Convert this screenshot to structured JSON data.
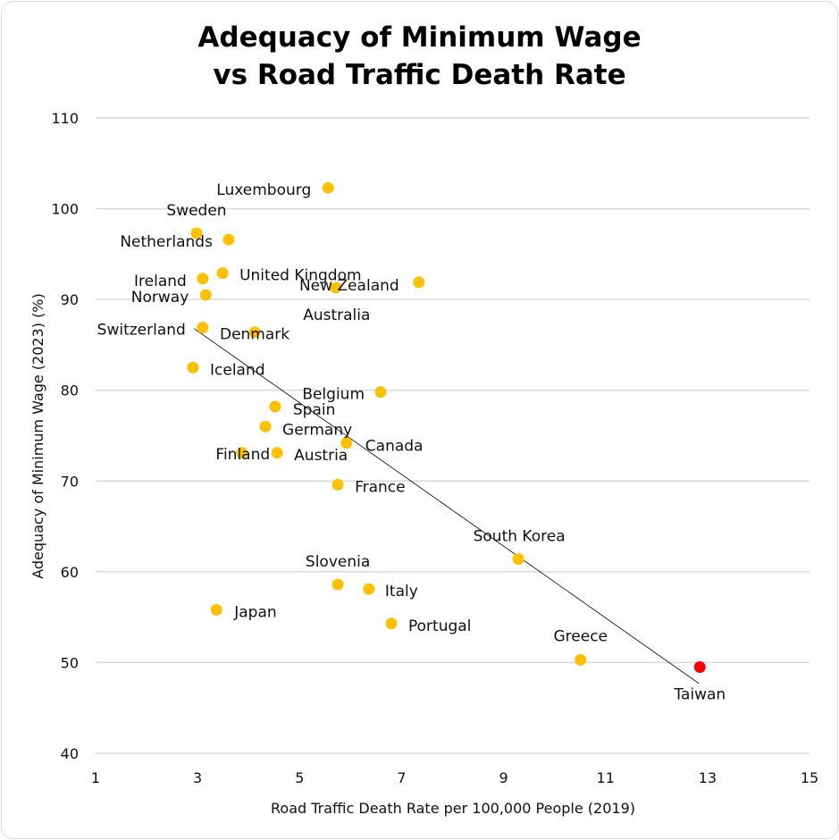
{
  "chart_data": {
    "type": "scatter",
    "title": [
      "Adequacy of Minimum Wage",
      "vs Road Traffic Death Rate"
    ],
    "xlabel": "Road Traffic Death Rate per 100,000 People (2019)",
    "ylabel": "Adequacy of Minimum Wage (2023) (%)",
    "xlim": [
      1,
      15
    ],
    "ylim": [
      40,
      110
    ],
    "xticks": [
      1,
      3,
      5,
      7,
      9,
      11,
      13,
      15
    ],
    "yticks": [
      40,
      50,
      60,
      70,
      80,
      90,
      100,
      110
    ],
    "grid": "horizontal",
    "colors": {
      "default": "#FFC000",
      "highlight": "#FF0000",
      "trendline": "#000000",
      "grid": "#d9d9d9"
    },
    "points": [
      {
        "label": "Luxembourg",
        "x": 5.56,
        "y": 102.3
      },
      {
        "label": "Sweden",
        "x": 2.98,
        "y": 97.3
      },
      {
        "label": "Netherlands",
        "x": 3.61,
        "y": 96.6
      },
      {
        "label": "United Kingdom",
        "x": 3.49,
        "y": 92.9
      },
      {
        "label": "Ireland",
        "x": 3.1,
        "y": 92.3
      },
      {
        "label": "Norway",
        "x": 3.16,
        "y": 90.5
      },
      {
        "label": "New Zealand",
        "x": 7.34,
        "y": 91.9
      },
      {
        "label": "Australia",
        "x": 5.71,
        "y": 91.3
      },
      {
        "label": "Switzerland",
        "x": 3.1,
        "y": 86.9
      },
      {
        "label": "Denmark",
        "x": 4.12,
        "y": 86.4
      },
      {
        "label": "Iceland",
        "x": 2.91,
        "y": 82.5
      },
      {
        "label": "Belgium",
        "x": 6.59,
        "y": 79.8
      },
      {
        "label": "Spain",
        "x": 4.52,
        "y": 78.2
      },
      {
        "label": "Germany",
        "x": 4.33,
        "y": 76.0
      },
      {
        "label": "Canada",
        "x": 5.92,
        "y": 74.2
      },
      {
        "label": "Finland",
        "x": 3.87,
        "y": 73.1
      },
      {
        "label": "Austria",
        "x": 4.56,
        "y": 73.1
      },
      {
        "label": "France",
        "x": 5.75,
        "y": 69.6
      },
      {
        "label": "South Korea",
        "x": 9.29,
        "y": 61.4
      },
      {
        "label": "Slovenia",
        "x": 5.75,
        "y": 58.6
      },
      {
        "label": "Italy",
        "x": 6.36,
        "y": 58.1
      },
      {
        "label": "Japan",
        "x": 3.37,
        "y": 55.8
      },
      {
        "label": "Portugal",
        "x": 6.8,
        "y": 54.3
      },
      {
        "label": "Greece",
        "x": 10.51,
        "y": 50.3
      },
      {
        "label": "Taiwan",
        "x": 12.85,
        "y": 49.5,
        "highlight": true
      }
    ],
    "trendline": {
      "x": [
        2.93,
        12.83
      ],
      "y": [
        86.8,
        47.7
      ]
    }
  }
}
